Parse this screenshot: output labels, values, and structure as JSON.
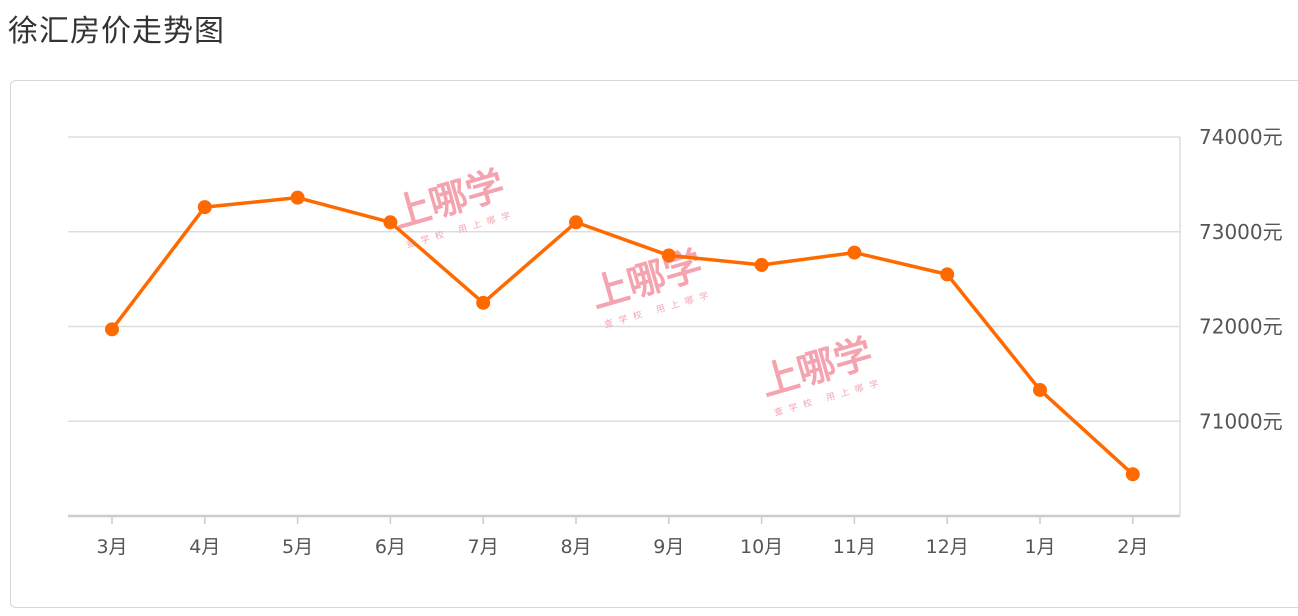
{
  "page": {
    "title": "徐汇房价走势图"
  },
  "watermark": {
    "brand": "上哪学",
    "slogan": "查学校  用上哪学"
  },
  "colors": {
    "line": "#ff6a00",
    "grid": "#dddddd",
    "axis": "#cccccc",
    "watermark": "#f39aa7"
  },
  "chart_data": {
    "type": "line",
    "title": "徐汇房价走势图",
    "xlabel": "",
    "ylabel": "",
    "categories": [
      "3月",
      "4月",
      "5月",
      "6月",
      "7月",
      "8月",
      "9月",
      "10月",
      "11月",
      "12月",
      "1月",
      "2月"
    ],
    "series": [
      {
        "name": "",
        "values": [
          71970,
          73260,
          73360,
          73100,
          72250,
          73100,
          72750,
          72650,
          72780,
          72550,
          71330,
          70440
        ]
      }
    ],
    "y_ticks": [
      71000,
      72000,
      73000,
      74000
    ],
    "y_tick_labels": [
      "71000元",
      "72000元",
      "73000元",
      "74000元"
    ],
    "ylim": [
      70000,
      74000
    ],
    "y_axis_position": "right",
    "grid": true,
    "legend": "none"
  }
}
